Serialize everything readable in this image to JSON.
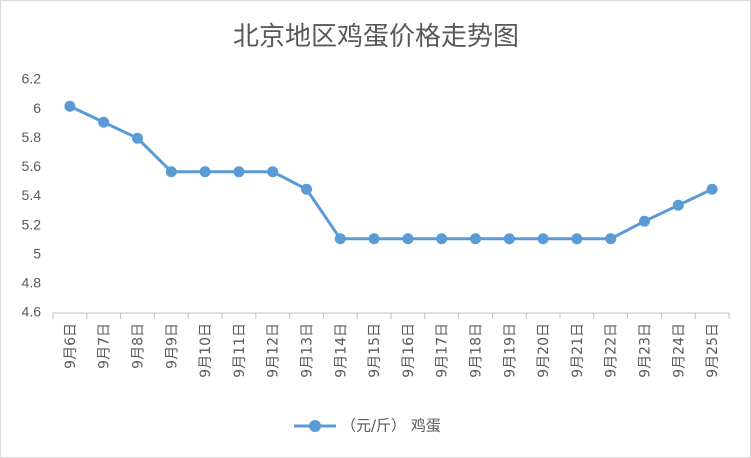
{
  "chart_data": {
    "type": "line",
    "title": "北京地区鸡蛋价格走势图",
    "categories": [
      "9月6日",
      "9月7日",
      "9月8日",
      "9月9日",
      "9月10日",
      "9月11日",
      "9月12日",
      "9月13日",
      "9月14日",
      "9月15日",
      "9月16日",
      "9月17日",
      "9月18日",
      "9月19日",
      "9月20日",
      "9月21日",
      "9月22日",
      "9月23日",
      "9月24日",
      "9月25日"
    ],
    "series": [
      {
        "name": "（元/斤） 鸡蛋",
        "values": [
          6.02,
          5.91,
          5.8,
          5.57,
          5.57,
          5.57,
          5.57,
          5.45,
          5.11,
          5.11,
          5.11,
          5.11,
          5.11,
          5.11,
          5.11,
          5.11,
          5.11,
          5.23,
          5.34,
          5.45
        ]
      }
    ],
    "ylim": [
      4.6,
      6.2
    ],
    "yticks": [
      "4.6",
      "4.8",
      "5",
      "5.2",
      "5.4",
      "5.6",
      "5.8",
      "6",
      "6.2"
    ],
    "xlabel": "",
    "ylabel": "",
    "grid": false,
    "legend_position": "bottom",
    "line_color": "#5b9bd5"
  }
}
